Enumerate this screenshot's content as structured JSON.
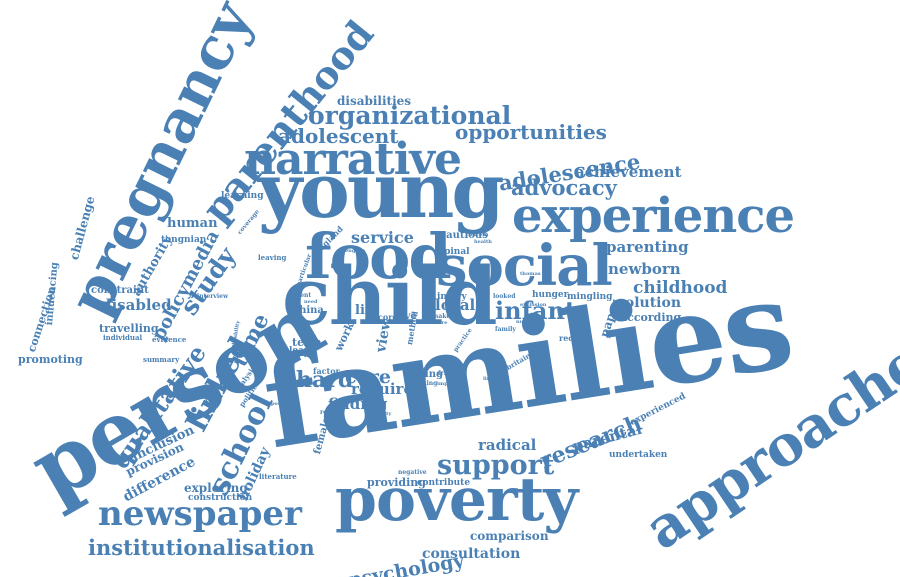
{
  "colors": {
    "word": "#4a80b4",
    "background": "#ffffff"
  },
  "words": [
    {
      "text": "families"
    },
    {
      "text": "child"
    },
    {
      "text": "young"
    },
    {
      "text": "poverty"
    },
    {
      "text": "person"
    },
    {
      "text": "approaches"
    },
    {
      "text": "pregnancy"
    },
    {
      "text": "experience"
    },
    {
      "text": "social"
    },
    {
      "text": "food"
    },
    {
      "text": "narrative"
    },
    {
      "text": "parenthood"
    },
    {
      "text": "newspaper"
    },
    {
      "text": "support"
    },
    {
      "text": "organizational"
    },
    {
      "text": "opportunities"
    },
    {
      "text": "adolescence"
    },
    {
      "text": "adolescent"
    },
    {
      "text": "advocacy"
    },
    {
      "text": "achievement"
    },
    {
      "text": "disabilities"
    },
    {
      "text": "institutionalisation"
    },
    {
      "text": "psychology"
    },
    {
      "text": "consultation"
    },
    {
      "text": "comparison"
    },
    {
      "text": "research"
    },
    {
      "text": "qualitative"
    },
    {
      "text": "school"
    },
    {
      "text": "linked"
    },
    {
      "text": "study"
    },
    {
      "text": "policymedia"
    },
    {
      "text": "time"
    },
    {
      "text": "holiday"
    },
    {
      "text": "parenting"
    },
    {
      "text": "newborn"
    },
    {
      "text": "childhood"
    },
    {
      "text": "solution"
    },
    {
      "text": "according"
    },
    {
      "text": "infant"
    },
    {
      "text": "service"
    },
    {
      "text": "hard"
    },
    {
      "text": "care"
    },
    {
      "text": "require"
    },
    {
      "text": "finding"
    },
    {
      "text": "radical"
    },
    {
      "text": "parental"
    },
    {
      "text": "experienced"
    },
    {
      "text": "undertaken"
    },
    {
      "text": "providing"
    },
    {
      "text": "contribute"
    },
    {
      "text": "exploring"
    },
    {
      "text": "construction"
    },
    {
      "text": "literature"
    },
    {
      "text": "disabled"
    },
    {
      "text": "travelling"
    },
    {
      "text": "constraint"
    },
    {
      "text": "human"
    },
    {
      "text": "tongnian"
    },
    {
      "text": "learning"
    },
    {
      "text": "challenge"
    },
    {
      "text": "influencing"
    },
    {
      "text": "connection"
    },
    {
      "text": "authority"
    },
    {
      "text": "promoting"
    },
    {
      "text": "summary"
    },
    {
      "text": "evidence"
    },
    {
      "text": "individual"
    },
    {
      "text": "interview"
    },
    {
      "text": "inclusion"
    },
    {
      "text": "provision"
    },
    {
      "text": "difference"
    },
    {
      "text": "female"
    },
    {
      "text": "local"
    },
    {
      "text": "injury"
    },
    {
      "text": "hunger"
    },
    {
      "text": "mingling"
    },
    {
      "text": "paper"
    },
    {
      "text": "cautious"
    },
    {
      "text": "spinal"
    },
    {
      "text": "england"
    },
    {
      "text": "leaving"
    },
    {
      "text": "coverage"
    },
    {
      "text": "work"
    },
    {
      "text": "life"
    },
    {
      "text": "china"
    },
    {
      "text": "term"
    },
    {
      "text": "leave"
    },
    {
      "text": "factor"
    },
    {
      "text": "thing"
    },
    {
      "text": "friend"
    },
    {
      "text": "eating"
    },
    {
      "text": "impact"
    },
    {
      "text": "view"
    },
    {
      "text": "live"
    },
    {
      "text": "cord"
    },
    {
      "text": "method"
    },
    {
      "text": "practice"
    },
    {
      "text": "receive"
    },
    {
      "text": "britain"
    },
    {
      "text": "looked"
    },
    {
      "text": "family"
    },
    {
      "text": "exclusion"
    },
    {
      "text": "number"
    },
    {
      "text": "thomas"
    },
    {
      "text": "make"
    },
    {
      "text": "more"
    },
    {
      "text": "particular"
    },
    {
      "text": "engage"
    },
    {
      "text": "parent"
    },
    {
      "text": "need"
    },
    {
      "text": "analysis"
    },
    {
      "text": "political"
    },
    {
      "text": "positive"
    },
    {
      "text": "review"
    },
    {
      "text": "quality"
    },
    {
      "text": "negative"
    },
    {
      "text": "limited"
    },
    {
      "text": "disability"
    },
    {
      "text": "health"
    },
    {
      "text": "concern"
    }
  ]
}
